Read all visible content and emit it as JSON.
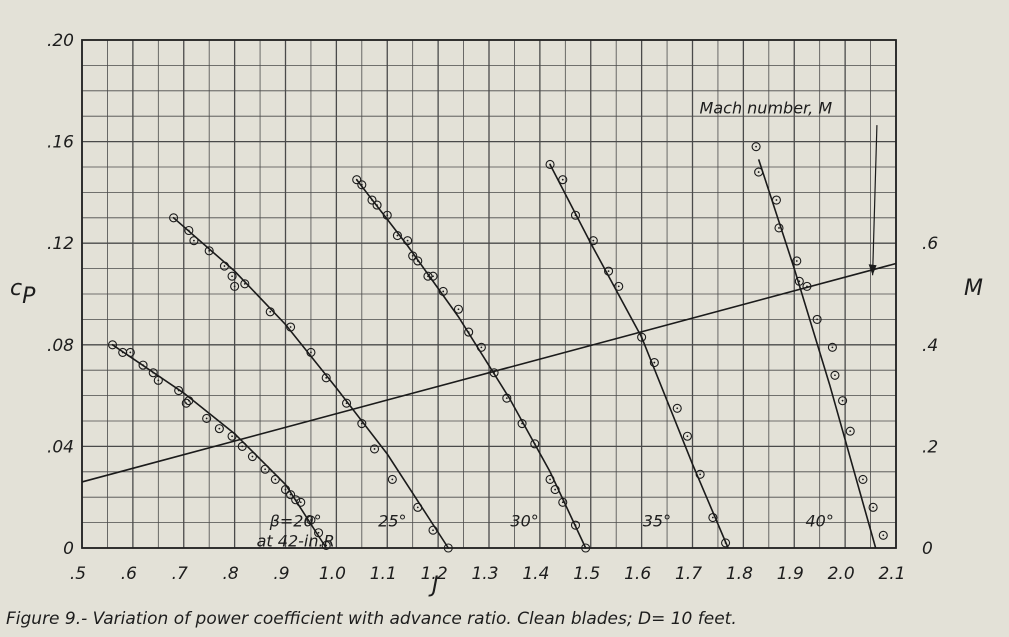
{
  "caption": "Figure 9.- Variation of power coefficient with advance ratio. Clean blades; D= 10 feet.",
  "chart_data": {
    "type": "line",
    "title": "",
    "xlabel": "J",
    "ylabel": "Cp",
    "y2label": "M",
    "xlim": [
      0.5,
      2.1
    ],
    "ylim": [
      0,
      0.2
    ],
    "y2lim": [
      0,
      1.0
    ],
    "grid": true,
    "x_ticks": [
      ".5",
      ".6",
      ".7",
      ".8",
      ".9",
      "1.0",
      "1.1",
      "1.2",
      "1.3",
      "1.4",
      "1.5",
      "1.6",
      "1.7",
      "1.8",
      "1.9",
      "2.0",
      "2.1"
    ],
    "y_ticks": [
      "0",
      ".04",
      ".08",
      ".12",
      ".16",
      ".20"
    ],
    "y2_ticks": [
      "0",
      ".2",
      ".4",
      ".6"
    ],
    "series": [
      {
        "name": "β=20° at 42-in.R",
        "label_line1": "β=20°",
        "label_line2": "at 42-in.R",
        "line": [
          [
            0.56,
            0.08
          ],
          [
            0.7,
            0.061
          ],
          [
            0.8,
            0.045
          ],
          [
            0.9,
            0.025
          ],
          [
            0.98,
            0.0
          ]
        ],
        "points": [
          [
            0.56,
            0.08
          ],
          [
            0.58,
            0.077
          ],
          [
            0.595,
            0.077
          ],
          [
            0.62,
            0.072
          ],
          [
            0.64,
            0.069
          ],
          [
            0.65,
            0.066
          ],
          [
            0.69,
            0.062
          ],
          [
            0.705,
            0.057
          ],
          [
            0.71,
            0.058
          ],
          [
            0.745,
            0.051
          ],
          [
            0.77,
            0.047
          ],
          [
            0.795,
            0.044
          ],
          [
            0.815,
            0.04
          ],
          [
            0.835,
            0.036
          ],
          [
            0.86,
            0.031
          ],
          [
            0.88,
            0.027
          ],
          [
            0.9,
            0.023
          ],
          [
            0.91,
            0.021
          ],
          [
            0.92,
            0.019
          ],
          [
            0.93,
            0.018
          ],
          [
            0.95,
            0.011
          ],
          [
            0.965,
            0.006
          ],
          [
            0.98,
            0.001
          ]
        ]
      },
      {
        "name": "25°",
        "label_line1": "25°",
        "line": [
          [
            0.68,
            0.13
          ],
          [
            0.8,
            0.109
          ],
          [
            0.9,
            0.088
          ],
          [
            1.0,
            0.063
          ],
          [
            1.1,
            0.037
          ],
          [
            1.22,
            0.0
          ]
        ],
        "points": [
          [
            0.68,
            0.13
          ],
          [
            0.71,
            0.125
          ],
          [
            0.72,
            0.121
          ],
          [
            0.75,
            0.117
          ],
          [
            0.78,
            0.111
          ],
          [
            0.795,
            0.107
          ],
          [
            0.8,
            0.103
          ],
          [
            0.82,
            0.104
          ],
          [
            0.87,
            0.093
          ],
          [
            0.91,
            0.087
          ],
          [
            0.95,
            0.077
          ],
          [
            0.98,
            0.067
          ],
          [
            1.02,
            0.057
          ],
          [
            1.05,
            0.049
          ],
          [
            1.075,
            0.039
          ],
          [
            1.11,
            0.027
          ],
          [
            1.16,
            0.016
          ],
          [
            1.19,
            0.007
          ],
          [
            1.22,
            0.0
          ]
        ]
      },
      {
        "name": "30°",
        "label_line1": "30°",
        "line": [
          [
            1.04,
            0.145
          ],
          [
            1.14,
            0.119
          ],
          [
            1.24,
            0.091
          ],
          [
            1.34,
            0.059
          ],
          [
            1.42,
            0.03
          ],
          [
            1.49,
            0.0
          ]
        ],
        "points": [
          [
            1.04,
            0.145
          ],
          [
            1.05,
            0.143
          ],
          [
            1.07,
            0.137
          ],
          [
            1.08,
            0.135
          ],
          [
            1.1,
            0.131
          ],
          [
            1.12,
            0.123
          ],
          [
            1.14,
            0.121
          ],
          [
            1.15,
            0.115
          ],
          [
            1.16,
            0.113
          ],
          [
            1.18,
            0.107
          ],
          [
            1.19,
            0.107
          ],
          [
            1.21,
            0.101
          ],
          [
            1.24,
            0.094
          ],
          [
            1.26,
            0.085
          ],
          [
            1.285,
            0.079
          ],
          [
            1.31,
            0.069
          ],
          [
            1.335,
            0.059
          ],
          [
            1.365,
            0.049
          ],
          [
            1.39,
            0.041
          ],
          [
            1.42,
            0.027
          ],
          [
            1.43,
            0.023
          ],
          [
            1.445,
            0.018
          ],
          [
            1.47,
            0.009
          ],
          [
            1.49,
            0.0
          ]
        ]
      },
      {
        "name": "35°",
        "label_line1": "35°",
        "line": [
          [
            1.42,
            0.151
          ],
          [
            1.5,
            0.12
          ],
          [
            1.6,
            0.083
          ],
          [
            1.7,
            0.033
          ],
          [
            1.77,
            0.0
          ]
        ],
        "points": [
          [
            1.42,
            0.151
          ],
          [
            1.445,
            0.145
          ],
          [
            1.47,
            0.131
          ],
          [
            1.505,
            0.121
          ],
          [
            1.535,
            0.109
          ],
          [
            1.555,
            0.103
          ],
          [
            1.6,
            0.083
          ],
          [
            1.625,
            0.073
          ],
          [
            1.67,
            0.055
          ],
          [
            1.69,
            0.044
          ],
          [
            1.715,
            0.029
          ],
          [
            1.74,
            0.012
          ],
          [
            1.765,
            0.002
          ]
        ]
      },
      {
        "name": "40°",
        "label_line1": "40°",
        "line": [
          [
            1.83,
            0.153
          ],
          [
            1.9,
            0.11
          ],
          [
            1.97,
            0.064
          ],
          [
            2.06,
            0.0
          ]
        ],
        "points": [
          [
            1.825,
            0.158
          ],
          [
            1.83,
            0.148
          ],
          [
            1.865,
            0.137
          ],
          [
            1.87,
            0.126
          ],
          [
            1.905,
            0.113
          ],
          [
            1.91,
            0.105
          ],
          [
            1.925,
            0.103
          ],
          [
            1.945,
            0.09
          ],
          [
            1.975,
            0.079
          ],
          [
            1.98,
            0.068
          ],
          [
            1.995,
            0.058
          ],
          [
            2.01,
            0.046
          ],
          [
            2.035,
            0.027
          ],
          [
            2.055,
            0.016
          ],
          [
            2.075,
            0.005
          ]
        ]
      }
    ],
    "mach_line": {
      "name": "Mach number, M",
      "label": "Mach number, M",
      "x": [
        0.5,
        2.1
      ],
      "M": [
        0.13,
        0.56
      ]
    }
  }
}
